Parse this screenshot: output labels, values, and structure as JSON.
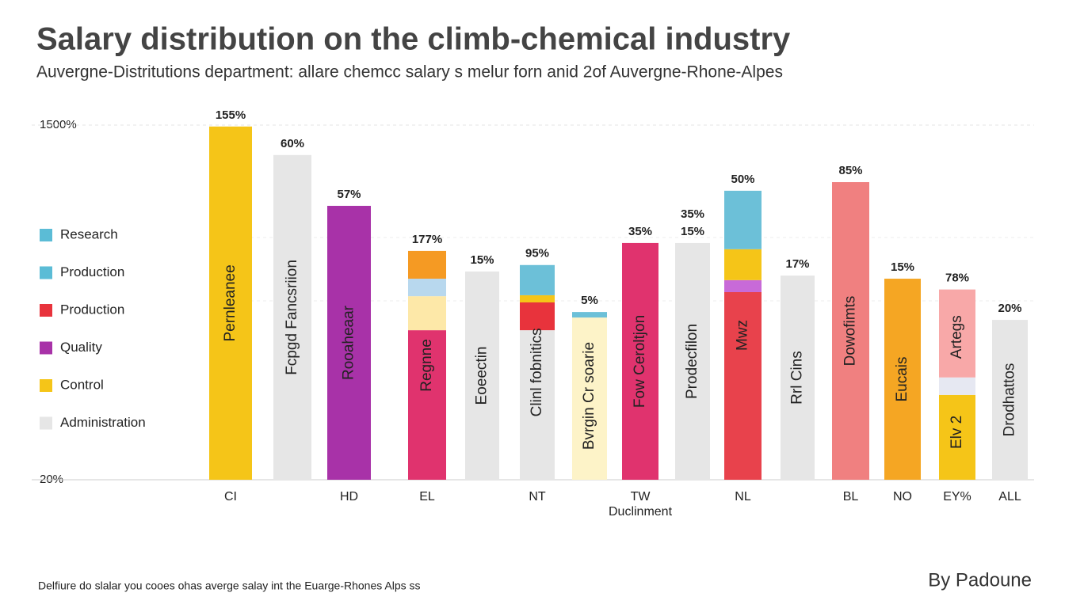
{
  "chart_data": {
    "type": "stacked_bar",
    "title": "Salary distribution on the climb-chemical industry",
    "subtitle": "Auvergne-Distritutions department: allare chemcc salary s melur forn anid 2of Auvergne-Rhone-Alpes",
    "x_label": "Duclinment",
    "footnote": "Delfiure do slalar you cooes ohas averge salay int the Euarge-Rhones Alps ss",
    "credit": "By Padoune",
    "ylim": [
      20,
      1500
    ],
    "yticks": [
      {
        "value": 1500,
        "label": "1500%"
      },
      {
        "value": 20,
        "label": "20%"
      }
    ],
    "grid": true,
    "legend": [
      {
        "name": "Research",
        "color": "#5bbcd6"
      },
      {
        "name": "Production",
        "color": "#5bbcd6"
      },
      {
        "name": "Production",
        "color": "#e8333c"
      },
      {
        "name": "Quality",
        "color": "#a832a8"
      },
      {
        "name": "Control",
        "color": "#f5c518"
      },
      {
        "name": "Administration",
        "color": "#e6e6e6"
      }
    ],
    "bars": [
      {
        "category": "CI",
        "value_label": "155%",
        "texts": [
          "Pernleanee"
        ],
        "segments": [
          {
            "value": 1474,
            "color": "#f5c518"
          }
        ]
      },
      {
        "category": null,
        "value_label": "60%",
        "texts": [
          "Fcpgd Fancsriion"
        ],
        "segments": [
          {
            "value": 1355,
            "color": "#e6e6e6"
          }
        ]
      },
      {
        "category": "HD",
        "value_label": "57%",
        "texts": [
          "Rooaheaar"
        ],
        "segments": [
          {
            "value": 1143,
            "color": "#a832a8"
          }
        ]
      },
      {
        "category": "EL",
        "value_label": "177%",
        "texts": [
          "Regnne"
        ],
        "segments": [
          {
            "value": 624,
            "color": "#e0336e"
          },
          {
            "value": 142,
            "color": "#fde8a8"
          },
          {
            "value": 73,
            "color": "#b8d8ee"
          },
          {
            "value": 116,
            "color": "#f59a23"
          }
        ]
      },
      {
        "category": null,
        "value_label": "15%",
        "texts": [
          "Eoeectin"
        ],
        "segments": [
          {
            "value": 869,
            "color": "#e6e6e6"
          }
        ]
      },
      {
        "category": "NT",
        "value_label": "95%",
        "texts": [
          "Clinl fobnitics"
        ],
        "segments": [
          {
            "value": 624,
            "color": "#e6e6e6"
          },
          {
            "value": 116,
            "color": "#e8333c"
          },
          {
            "value": 30,
            "color": "#f5c518"
          },
          {
            "value": 126,
            "color": "#6cc0d8"
          }
        ]
      },
      {
        "category": null,
        "value_label": "5%",
        "texts": [
          "Bvrgin Cr soarie"
        ],
        "segments": [
          {
            "value": 677,
            "color": "#fdf3c8"
          },
          {
            "value": 23,
            "color": "#6cc0d8"
          }
        ]
      },
      {
        "category": "TW",
        "value_label": "35%",
        "texts": [
          "Fow Ceroltjon"
        ],
        "segments": [
          {
            "value": 988,
            "color": "#e0336e"
          }
        ]
      },
      {
        "category": null,
        "value_label": "15%",
        "annotation": "35%",
        "texts": [
          "Prodecfilon"
        ],
        "segments": [
          {
            "value": 988,
            "color": "#e6e6e6"
          }
        ]
      },
      {
        "category": "NL",
        "value_label": "50%",
        "texts": [
          "Mwz"
        ],
        "segments": [
          {
            "value": 783,
            "color": "#e8424c"
          },
          {
            "value": 50,
            "color": "#c86ad8"
          },
          {
            "value": 129,
            "color": "#f5c518"
          },
          {
            "value": 244,
            "color": "#6cc0d8"
          }
        ]
      },
      {
        "category": null,
        "value_label": "17%",
        "texts": [
          "Rrl Cins"
        ],
        "segments": [
          {
            "value": 852,
            "color": "#e6e6e6"
          }
        ]
      },
      {
        "category": "BL",
        "value_label": "85%",
        "texts": [
          "Dowofimts"
        ],
        "segments": [
          {
            "value": 1242,
            "color": "#f08080"
          }
        ]
      },
      {
        "category": "NO",
        "value_label": "15%",
        "texts": [
          "Eucais"
        ],
        "segments": [
          {
            "value": 839,
            "color": "#f5a623"
          }
        ]
      },
      {
        "category": "EY%",
        "value_label": "78%",
        "texts": [
          "Elv 2",
          "Artegs"
        ],
        "segments": [
          {
            "value": 354,
            "color": "#f5c518"
          },
          {
            "value": 73,
            "color": "#e6e8f2"
          },
          {
            "value": 367,
            "color": "#f8a8a8"
          }
        ]
      },
      {
        "category": "ALL",
        "value_label": "20%",
        "texts": [
          "Drodhattos"
        ],
        "segments": [
          {
            "value": 667,
            "color": "#e6e6e6"
          }
        ]
      }
    ]
  }
}
